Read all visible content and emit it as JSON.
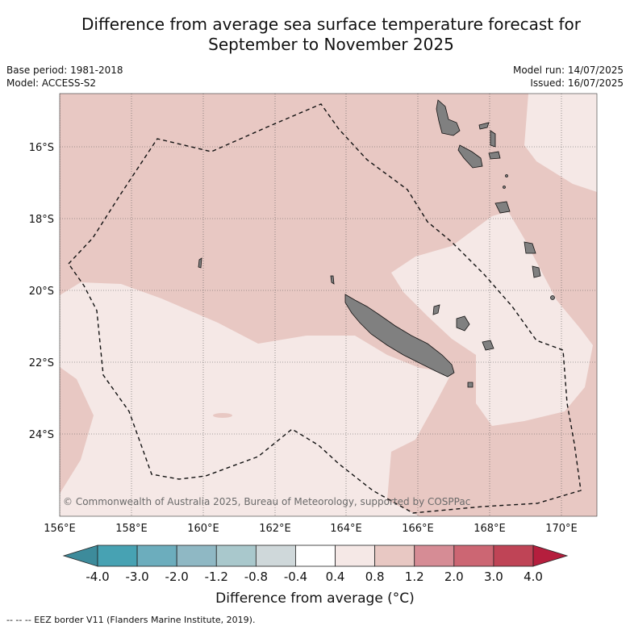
{
  "title_line1": "Difference from average sea surface temperature forecast for",
  "title_line2": "September to November 2025",
  "meta": {
    "base_period": "Base period: 1981-2018",
    "model": "Model: ACCESS-S2",
    "model_run": "Model run: 14/07/2025",
    "issued": "Issued: 16/07/2025"
  },
  "map": {
    "lat_labels": [
      "16°S",
      "18°S",
      "20°S",
      "22°S",
      "24°S"
    ],
    "lon_labels": [
      "156°E",
      "158°E",
      "160°E",
      "162°E",
      "164°E",
      "166°E",
      "168°E",
      "170°E"
    ],
    "copyright": "© Commonwealth of Australia 2025, Bureau of Meteorology, supported by COSPPac",
    "colors": {
      "warm_0_4_0_8": "#f5e8e6",
      "warm_0_8_1_2": "#e8c8c3",
      "land": "#808080"
    }
  },
  "colorbar": {
    "ticks": [
      "-4.0",
      "-3.0",
      "-2.0",
      "-1.2",
      "-0.8",
      "-0.4",
      "0.4",
      "0.8",
      "1.2",
      "2.0",
      "3.0",
      "4.0"
    ],
    "colors": [
      "#3d8b9b",
      "#47a2b3",
      "#6cadbd",
      "#8fb8c4",
      "#a9c8cc",
      "#cfd8da",
      "#ffffff",
      "#f5e8e6",
      "#e8c8c3",
      "#d68c95",
      "#cc6673",
      "#bf4456",
      "#b51e3d"
    ],
    "label": "Difference from average (°C)"
  },
  "footer": "--  --  -- EEZ border V11 (Flanders Marine Institute, 2019)."
}
